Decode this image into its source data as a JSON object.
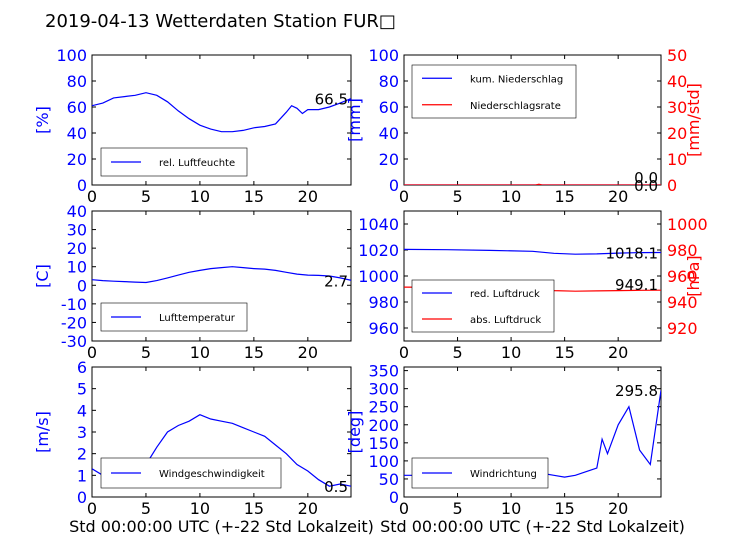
{
  "title": "2019-04-13 Wetterdaten Station FUR□",
  "colors": {
    "blue": "#0000ff",
    "red": "#ff0000",
    "black": "#000000",
    "frame": "#000000"
  },
  "chart_data": [
    {
      "id": "humidity",
      "type": "line",
      "xlim": [
        0,
        24
      ],
      "ylim": [
        0,
        100
      ],
      "xticks": [
        0,
        5,
        10,
        15,
        20
      ],
      "yticks": [
        0,
        20,
        40,
        60,
        80,
        100
      ],
      "ylabel": "[%]",
      "legend_position": "lower-left",
      "annotation": "66.5",
      "series": [
        {
          "name": "rel. Luftfeuchte",
          "color": "#0000ff",
          "x": [
            0,
            1,
            2,
            3,
            4,
            5,
            6,
            7,
            8,
            9,
            10,
            11,
            12,
            13,
            14,
            15,
            16,
            17,
            18,
            18.5,
            19,
            19.5,
            20,
            21,
            22,
            23,
            24
          ],
          "y": [
            61,
            63,
            67,
            68,
            69,
            71,
            69,
            64,
            57,
            51,
            46,
            43,
            41,
            41,
            42,
            44,
            45,
            47,
            56,
            61,
            59,
            55,
            58,
            58,
            60,
            63,
            66.5
          ]
        }
      ]
    },
    {
      "id": "precip",
      "type": "line",
      "xlim": [
        0,
        24
      ],
      "ylim": [
        0,
        100
      ],
      "ylim_right": [
        0,
        50
      ],
      "xticks": [
        0,
        5,
        10,
        15,
        20
      ],
      "yticks": [
        0,
        20,
        40,
        60,
        80,
        100
      ],
      "yticks_right": [
        0,
        10,
        20,
        30,
        40,
        50
      ],
      "ylabel": "[mm]",
      "ylabel_right": "[mm/std]",
      "legend_position": "upper-left",
      "annotation": "0.0",
      "annotation_right": "0.0",
      "series": [
        {
          "name": "kum. Niederschlag",
          "color": "#0000ff",
          "axis": "left",
          "x": [
            0,
            24
          ],
          "y": [
            0,
            0
          ]
        },
        {
          "name": "Niederschlagsrate",
          "color": "#ff0000",
          "axis": "right",
          "x": [
            0,
            12.3,
            12.6,
            12.9,
            24
          ],
          "y": [
            0,
            0,
            0.3,
            0,
            0
          ]
        }
      ]
    },
    {
      "id": "temperature",
      "type": "line",
      "xlim": [
        0,
        24
      ],
      "ylim": [
        -30,
        40
      ],
      "xticks": [
        0,
        5,
        10,
        15,
        20
      ],
      "yticks": [
        -30,
        -20,
        -10,
        0,
        10,
        20,
        30,
        40
      ],
      "ylabel": "[C]",
      "legend_position": "lower-left",
      "annotation": "2.7",
      "series": [
        {
          "name": "Lufttemperatur",
          "color": "#0000ff",
          "x": [
            0,
            1,
            2,
            3,
            4,
            5,
            6,
            7,
            8,
            9,
            10,
            11,
            12,
            13,
            14,
            15,
            16,
            17,
            18,
            19,
            20,
            21,
            22,
            23,
            24
          ],
          "y": [
            3,
            2.5,
            2.2,
            2,
            1.7,
            1.5,
            2.5,
            4,
            5.5,
            7,
            8,
            9,
            9.5,
            10,
            9.5,
            9,
            8.7,
            8,
            7,
            6,
            5.5,
            5.3,
            5,
            4,
            2.7
          ]
        }
      ]
    },
    {
      "id": "pressure",
      "type": "line",
      "xlim": [
        0,
        24
      ],
      "ylim": [
        950,
        1050
      ],
      "ylim_right": [
        910,
        1010
      ],
      "xticks": [
        0,
        5,
        10,
        15,
        20
      ],
      "yticks": [
        960,
        980,
        1000,
        1020,
        1040
      ],
      "yticks_right": [
        920,
        940,
        960,
        980,
        1000
      ],
      "ylabel": "",
      "ylabel_right": "[hPa]",
      "legend_position": "lower-left",
      "annotation": "1018.1",
      "annotation_right": "949.1",
      "series": [
        {
          "name": "red. Luftdruck",
          "color": "#0000ff",
          "axis": "left",
          "x": [
            0,
            4,
            8,
            12,
            14,
            16,
            18,
            20,
            22,
            24
          ],
          "y": [
            1020.5,
            1020.2,
            1019.7,
            1019,
            1017.5,
            1016.8,
            1017,
            1017.6,
            1018,
            1018.1
          ]
        },
        {
          "name": "abs. Luftdruck",
          "color": "#ff0000",
          "axis": "right",
          "x": [
            0,
            4,
            8,
            12,
            14,
            16,
            18,
            20,
            22,
            24
          ],
          "y": [
            951.5,
            951.2,
            950.8,
            950,
            948.8,
            948.3,
            948.5,
            948.8,
            949,
            949.1
          ]
        }
      ]
    },
    {
      "id": "windspeed",
      "type": "line",
      "xlim": [
        0,
        24
      ],
      "ylim": [
        0,
        6
      ],
      "xticks": [
        0,
        5,
        10,
        15,
        20
      ],
      "yticks": [
        0,
        1,
        2,
        3,
        4,
        5,
        6
      ],
      "ylabel": "[m/s]",
      "xlabel": "Std 00:00:00 UTC (+-22 Std Lokalzeit)",
      "legend_position": "lower-left",
      "annotation": "0.5",
      "series": [
        {
          "name": "Windgeschwindigkeit",
          "color": "#0000ff",
          "x": [
            0,
            1,
            2,
            3,
            4,
            5,
            6,
            7,
            8,
            9,
            10,
            11,
            12,
            13,
            14,
            15,
            16,
            17,
            18,
            19,
            20,
            21,
            22,
            23,
            24
          ],
          "y": [
            1.3,
            1.0,
            0.8,
            1.0,
            1.2,
            1.5,
            2.3,
            3.0,
            3.3,
            3.5,
            3.8,
            3.6,
            3.5,
            3.4,
            3.2,
            3.0,
            2.8,
            2.4,
            2.0,
            1.5,
            1.2,
            0.8,
            0.5,
            0.6,
            0.5
          ]
        }
      ]
    },
    {
      "id": "winddirection",
      "type": "line",
      "xlim": [
        0,
        24
      ],
      "ylim": [
        0,
        360
      ],
      "xticks": [
        0,
        5,
        10,
        15,
        20
      ],
      "yticks": [
        0,
        50,
        100,
        150,
        200,
        250,
        300,
        350
      ],
      "ylabel": "[deg]",
      "xlabel": "Std 00:00:00 UTC (+-22 Std Lokalzeit)",
      "legend_position": "lower-left",
      "annotation": "295.8",
      "series": [
        {
          "name": "Windrichtung",
          "color": "#0000ff",
          "x": [
            0,
            1,
            2,
            3,
            4,
            5,
            6,
            7,
            8,
            9,
            10,
            11,
            12,
            13,
            14,
            15,
            16,
            17,
            18,
            18.5,
            19,
            20,
            21,
            22,
            23,
            24
          ],
          "y": [
            60,
            60,
            55,
            70,
            60,
            55,
            60,
            65,
            60,
            55,
            60,
            70,
            75,
            65,
            60,
            55,
            60,
            70,
            80,
            160,
            120,
            200,
            250,
            130,
            90,
            295.8
          ]
        }
      ]
    }
  ]
}
